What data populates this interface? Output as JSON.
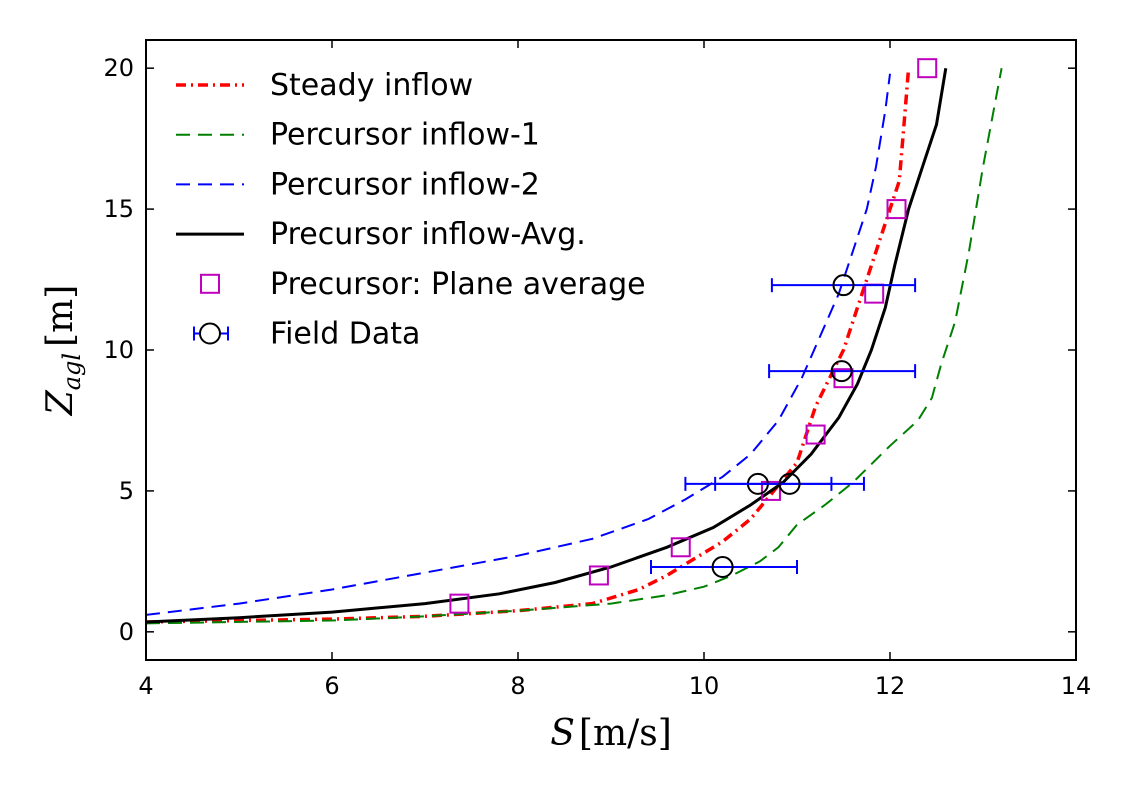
{
  "chart_data": {
    "type": "line",
    "xlabel_main": "S",
    "xlabel_unit": "[m/s]",
    "ylabel_main": "Z",
    "ylabel_sub": "agl",
    "ylabel_unit": "[m]",
    "xlim": [
      4,
      14
    ],
    "ylim": [
      -1,
      21
    ],
    "xticks": [
      4,
      6,
      8,
      10,
      12,
      14
    ],
    "yticks": [
      0,
      5,
      10,
      15,
      20
    ],
    "legend_position": "top-left",
    "series": [
      {
        "name": "Steady inflow",
        "style": "dashdot",
        "color": "#ff0000",
        "x": [
          4.0,
          6.0,
          7.0,
          8.0,
          8.8,
          9.3,
          9.6,
          9.9,
          10.2,
          10.5,
          10.8,
          11.0,
          11.1,
          11.2,
          11.35,
          11.5,
          11.6,
          11.7,
          11.8,
          11.9,
          12.0,
          12.1,
          12.15,
          12.2
        ],
        "y": [
          0.35,
          0.45,
          0.55,
          0.75,
          1.0,
          1.5,
          2.0,
          2.6,
          3.2,
          4.0,
          5.2,
          6.0,
          7.0,
          8.0,
          9.0,
          10.0,
          11.0,
          12.0,
          13.0,
          14.0,
          15.0,
          16.0,
          18.0,
          20.0
        ]
      },
      {
        "name": "Percursor inflow-1",
        "style": "dashed",
        "color": "#008000",
        "x": [
          4.0,
          6.0,
          7.0,
          8.0,
          9.0,
          9.6,
          10.0,
          10.3,
          10.6,
          10.8,
          11.0,
          11.3,
          11.6,
          12.0,
          12.3,
          12.45,
          12.55,
          12.7,
          12.85,
          13.0,
          13.2
        ],
        "y": [
          0.3,
          0.4,
          0.55,
          0.75,
          1.0,
          1.3,
          1.6,
          2.0,
          2.5,
          3.0,
          3.8,
          4.5,
          5.3,
          6.6,
          7.5,
          8.3,
          9.5,
          11.0,
          13.5,
          16.5,
          20.0
        ]
      },
      {
        "name": "Percursor inflow-2",
        "style": "dashed",
        "color": "#0000ff",
        "x": [
          4.0,
          5.0,
          6.0,
          7.0,
          8.0,
          8.8,
          9.4,
          9.8,
          10.2,
          10.5,
          10.8,
          11.05,
          11.25,
          11.45,
          11.6,
          11.75,
          11.85,
          11.95,
          12.0
        ],
        "y": [
          0.6,
          1.0,
          1.5,
          2.1,
          2.7,
          3.3,
          4.0,
          4.7,
          5.5,
          6.3,
          7.5,
          9.0,
          10.5,
          12.0,
          13.5,
          15.0,
          16.5,
          18.5,
          19.8
        ]
      },
      {
        "name": "Precursor inflow-Avg.",
        "style": "solid",
        "color": "#000000",
        "x": [
          4.0,
          5.0,
          6.0,
          7.0,
          7.8,
          8.4,
          9.0,
          9.6,
          10.1,
          10.5,
          10.85,
          11.15,
          11.45,
          11.65,
          11.8,
          11.95,
          12.05,
          12.2,
          12.35,
          12.5,
          12.6
        ],
        "y": [
          0.35,
          0.5,
          0.7,
          1.0,
          1.35,
          1.75,
          2.3,
          3.0,
          3.7,
          4.5,
          5.3,
          6.3,
          7.6,
          8.8,
          10.0,
          11.5,
          13.0,
          15.0,
          16.5,
          18.0,
          20.0
        ]
      }
    ],
    "markers": {
      "name": "Precursor: Plane average",
      "color": "#bf00bf",
      "x": [
        7.37,
        8.87,
        9.75,
        10.72,
        11.2,
        11.5,
        11.83,
        12.07,
        12.4
      ],
      "y": [
        1.0,
        2.0,
        3.0,
        5.0,
        7.0,
        9.0,
        12.0,
        15.0,
        20.0
      ]
    },
    "errorbars": {
      "name": "Field Data",
      "color": "#0000ff",
      "marker_color": "#000000",
      "points": [
        {
          "x": 10.2,
          "y": 2.3,
          "xmin": 9.43,
          "xmax": 11.0
        },
        {
          "x": 10.58,
          "y": 5.25,
          "xmin": 9.8,
          "xmax": 11.37
        },
        {
          "x": 10.92,
          "y": 5.25,
          "xmin": 10.12,
          "xmax": 11.72
        },
        {
          "x": 11.48,
          "y": 9.25,
          "xmin": 10.7,
          "xmax": 12.27
        },
        {
          "x": 11.5,
          "y": 12.3,
          "xmin": 10.73,
          "xmax": 12.27
        }
      ]
    }
  }
}
